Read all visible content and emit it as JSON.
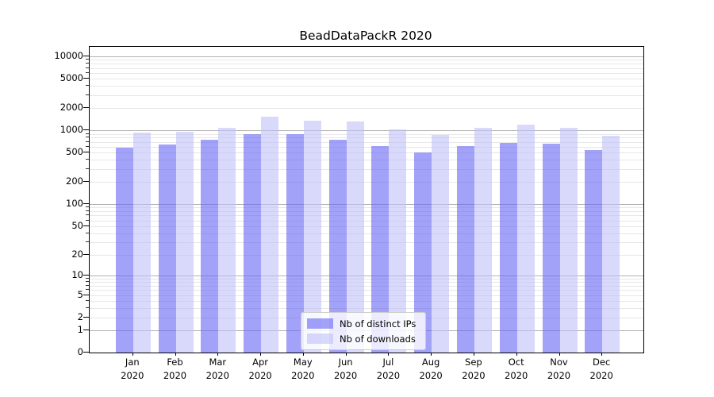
{
  "title": "BeadDataPackR 2020",
  "chart_data": {
    "type": "bar",
    "title": "BeadDataPackR 2020",
    "yscale": "log1p",
    "xlabel": "",
    "ylabel": "",
    "ylim": [
      0,
      13500
    ],
    "grid": true,
    "legend_position": "lower center",
    "categories": [
      "Jan 2020",
      "Feb 2020",
      "Mar 2020",
      "Apr 2020",
      "May 2020",
      "Jun 2020",
      "Jul 2020",
      "Aug 2020",
      "Sep 2020",
      "Oct 2020",
      "Nov 2020",
      "Dec 2020"
    ],
    "y_ticks": [
      0,
      1,
      2,
      5,
      10,
      20,
      50,
      100,
      200,
      500,
      1000,
      2000,
      5000,
      10000
    ],
    "series": [
      {
        "name": "Nb of distinct IPs",
        "color": "#6464f5",
        "alpha": 0.6,
        "rendered_color": "#a4a4f2",
        "values": [
          590,
          645,
          745,
          890,
          900,
          750,
          615,
          505,
          610,
          685,
          670,
          540
        ]
      },
      {
        "name": "Nb of downloads",
        "color": "#c0c0fa",
        "alpha": 0.6,
        "rendered_color": "#d9d9f8",
        "values": [
          930,
          950,
          1100,
          1550,
          1360,
          1320,
          1030,
          865,
          1085,
          1210,
          1100,
          845
        ]
      }
    ],
    "colors": {
      "major_grid": "#b2b2b2",
      "minor_grid": "#e7e7e7",
      "spine": "#000000",
      "text": "#000000"
    }
  }
}
